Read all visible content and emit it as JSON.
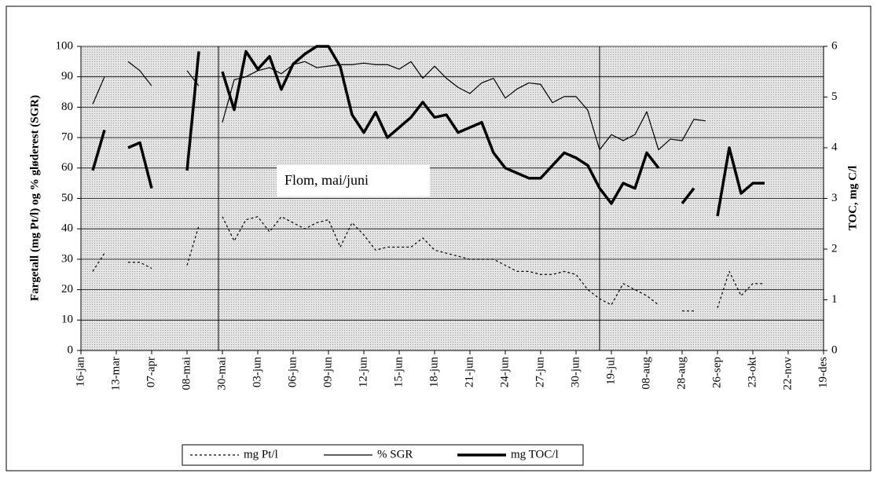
{
  "chart_data": {
    "type": "line",
    "y_label": "Fargetall (mg Pt/l) og % gløderest (SGR)",
    "y2_label": "TOC, mg C/l",
    "annotation": "Flom, mai/juni",
    "categories": [
      "16-jan",
      null,
      null,
      "13-mar",
      null,
      null,
      "07-apr",
      null,
      null,
      "08-mai",
      null,
      null,
      "30-mai",
      null,
      null,
      "03-jun",
      null,
      null,
      "06-jun",
      null,
      null,
      "09-jun",
      null,
      null,
      "12-jun",
      null,
      null,
      "15-jun",
      null,
      null,
      "18-jun",
      null,
      null,
      "21-jun",
      null,
      null,
      "24-jun",
      null,
      null,
      "27-jun",
      null,
      null,
      "30-jun",
      null,
      null,
      "19-jul",
      null,
      null,
      "08-aug",
      null,
      null,
      "28-aug",
      null,
      null,
      "26-sep",
      null,
      null,
      "23-okt",
      null,
      null,
      "22-nov",
      null,
      null,
      "19-des"
    ],
    "series": [
      {
        "name": "mg Pt/l",
        "color": "#000000",
        "width": 1.2,
        "dashed": true,
        "values": [
          null,
          26,
          32,
          null,
          29,
          29,
          27,
          null,
          null,
          28,
          41,
          null,
          44,
          36,
          43,
          44,
          39,
          44,
          42,
          40,
          42,
          43,
          34,
          42,
          38,
          33,
          34,
          34,
          34,
          37,
          33,
          32,
          31,
          30,
          30,
          30,
          28,
          26,
          26,
          25,
          25,
          26,
          25,
          20,
          17,
          15,
          22,
          20,
          18,
          15,
          null,
          13,
          13,
          null,
          14,
          26,
          18,
          22,
          22,
          null,
          null,
          null,
          null,
          null
        ]
      },
      {
        "name": "% SGR",
        "color": "#000000",
        "width": 1.2,
        "dashed": false,
        "values": [
          null,
          81,
          90,
          null,
          95,
          92,
          87,
          null,
          null,
          92,
          87,
          null,
          75,
          89,
          90,
          92,
          93,
          91,
          94,
          95,
          93,
          93.5,
          94,
          94,
          94.5,
          94,
          94,
          92.5,
          95,
          89.5,
          93.5,
          89.5,
          86.5,
          84.5,
          88,
          89.5,
          83,
          86,
          88,
          87.5,
          81.5,
          83.5,
          83.5,
          79,
          66,
          71,
          69,
          71,
          78.5,
          66,
          69.5,
          69,
          76,
          75.5,
          null,
          null,
          null,
          null,
          null,
          null,
          null,
          null,
          null,
          null
        ]
      },
      {
        "name": "mg TOC/l",
        "color": "#000000",
        "width": 3.5,
        "dashed": false,
        "axis": "y2",
        "values": [
          null,
          3.55,
          4.35,
          null,
          4.0,
          4.1,
          3.2,
          null,
          null,
          3.55,
          5.9,
          null,
          5.5,
          4.75,
          5.9,
          5.55,
          5.8,
          5.15,
          5.65,
          5.85,
          6,
          6,
          5.6,
          4.65,
          4.3,
          4.7,
          4.2,
          4.4,
          4.6,
          4.9,
          4.6,
          4.65,
          4.3,
          4.4,
          4.5,
          3.9,
          3.6,
          3.5,
          3.4,
          3.4,
          3.65,
          3.9,
          3.8,
          3.65,
          3.2,
          2.9,
          3.3,
          3.2,
          3.9,
          3.6,
          null,
          2.9,
          3.2,
          null,
          2.65,
          4.0,
          3.1,
          3.3,
          3.3,
          null,
          null,
          null,
          null,
          null
        ]
      }
    ],
    "ylim": [
      0,
      100
    ],
    "yticks": [
      0,
      10,
      20,
      30,
      40,
      50,
      60,
      70,
      80,
      90,
      100
    ],
    "y2lim": [
      0,
      6
    ],
    "y2ticks": [
      0,
      1,
      2,
      3,
      4,
      5,
      6
    ],
    "grid": true,
    "legend": "bottom"
  }
}
